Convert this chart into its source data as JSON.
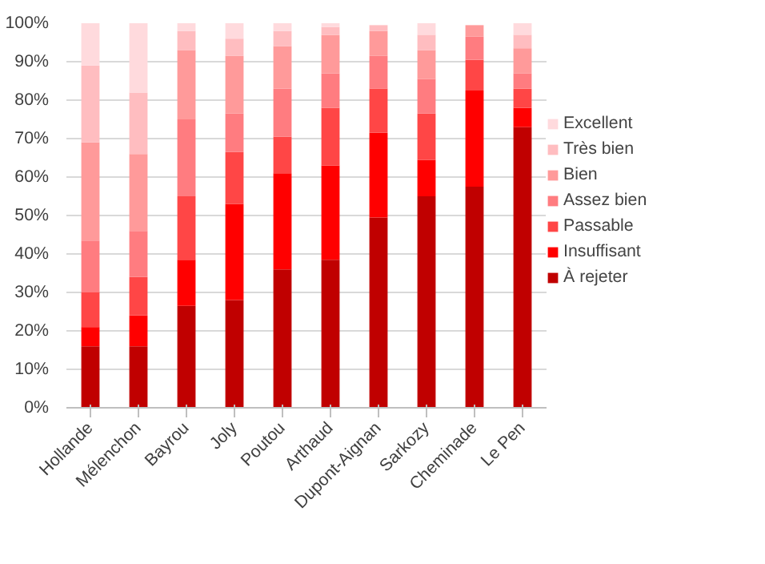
{
  "chart_data": {
    "type": "bar",
    "stacked": true,
    "categories": [
      "Hollande",
      "Mélenchon",
      "Bayrou",
      "Joly",
      "Poutou",
      "Arthaud",
      "Dupont-Aignan",
      "Sarkozy",
      "Cheminade",
      "Le Pen"
    ],
    "series": [
      {
        "name": "À rejeter",
        "color": "#c00000",
        "values": [
          16,
          16,
          26.5,
          28,
          36,
          38.5,
          49.5,
          55,
          57.5,
          73
        ]
      },
      {
        "name": "Insuffisant",
        "color": "#ff0000",
        "values": [
          5,
          8,
          12,
          25,
          25,
          24.5,
          22,
          9.5,
          25,
          5
        ]
      },
      {
        "name": "Passable",
        "color": "#ff4646",
        "values": [
          9,
          10,
          16.5,
          13.5,
          9.5,
          15,
          11.5,
          12,
          8,
          5
        ]
      },
      {
        "name": "Assez bien",
        "color": "#ff7c80",
        "values": [
          13.5,
          12,
          20,
          10,
          12.5,
          9,
          8.5,
          9,
          6,
          4
        ]
      },
      {
        "name": "Bien",
        "color": "#ff9a9a",
        "values": [
          25.5,
          20,
          18,
          15,
          11,
          10,
          6.5,
          7.5,
          3,
          6.5
        ]
      },
      {
        "name": "Très bien",
        "color": "#ffbdc0",
        "values": [
          20,
          16,
          5,
          4.5,
          4,
          2,
          1.5,
          4,
          null,
          3.5
        ]
      },
      {
        "name": "Excellent",
        "color": "#ffdadd",
        "values": [
          11,
          18,
          2,
          4,
          2,
          1,
          null,
          3,
          null,
          3
        ]
      }
    ],
    "ylim": [
      0,
      100
    ],
    "yticks": [
      {
        "value": 0,
        "label": "0%"
      },
      {
        "value": 10,
        "label": "10%"
      },
      {
        "value": 20,
        "label": "20%"
      },
      {
        "value": 30,
        "label": "30%"
      },
      {
        "value": 40,
        "label": "40%"
      },
      {
        "value": 50,
        "label": "50%"
      },
      {
        "value": 60,
        "label": "60%"
      },
      {
        "value": 70,
        "label": "70%"
      },
      {
        "value": 80,
        "label": "80%"
      },
      {
        "value": 90,
        "label": "90%"
      },
      {
        "value": 100,
        "label": "100%"
      }
    ],
    "grid": "y",
    "legend": "right"
  }
}
